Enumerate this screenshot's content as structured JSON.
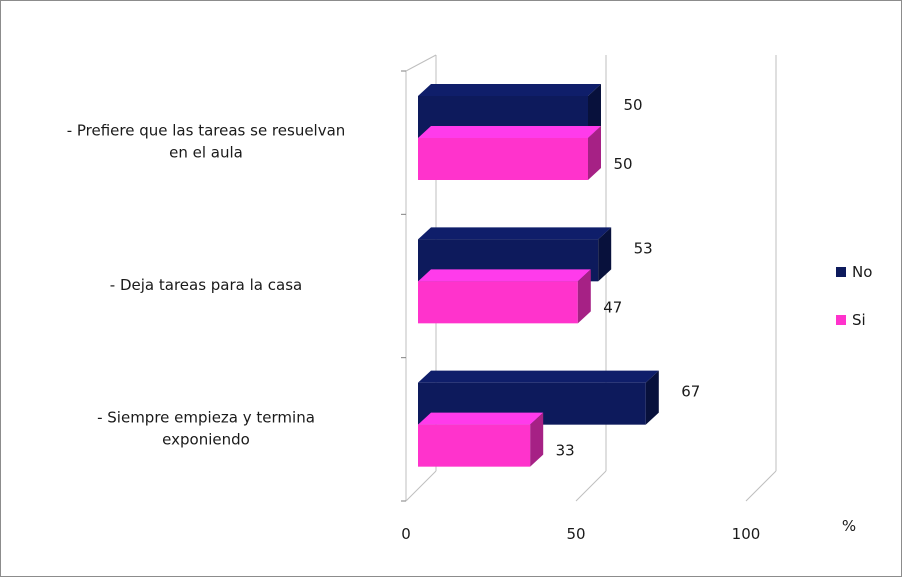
{
  "chart_data": {
    "type": "bar",
    "orientation": "horizontal",
    "three_d": true,
    "categories": [
      [
        "-  Prefiere que las tareas se resuelvan",
        "en el aula"
      ],
      [
        "-  Deja tareas para la casa"
      ],
      [
        "-  Siempre empieza y termina",
        "exponiendo"
      ]
    ],
    "series": [
      {
        "name": "No",
        "color": "#0d1a5c",
        "values": [
          50,
          53,
          67
        ]
      },
      {
        "name": "Si",
        "color": "#ff33cc",
        "values": [
          50,
          47,
          33
        ]
      }
    ],
    "xlim": [
      0,
      100
    ],
    "xticks": [
      "0",
      "50",
      "100"
    ],
    "xlabel": "%",
    "legend_position": "right",
    "grid": true
  }
}
